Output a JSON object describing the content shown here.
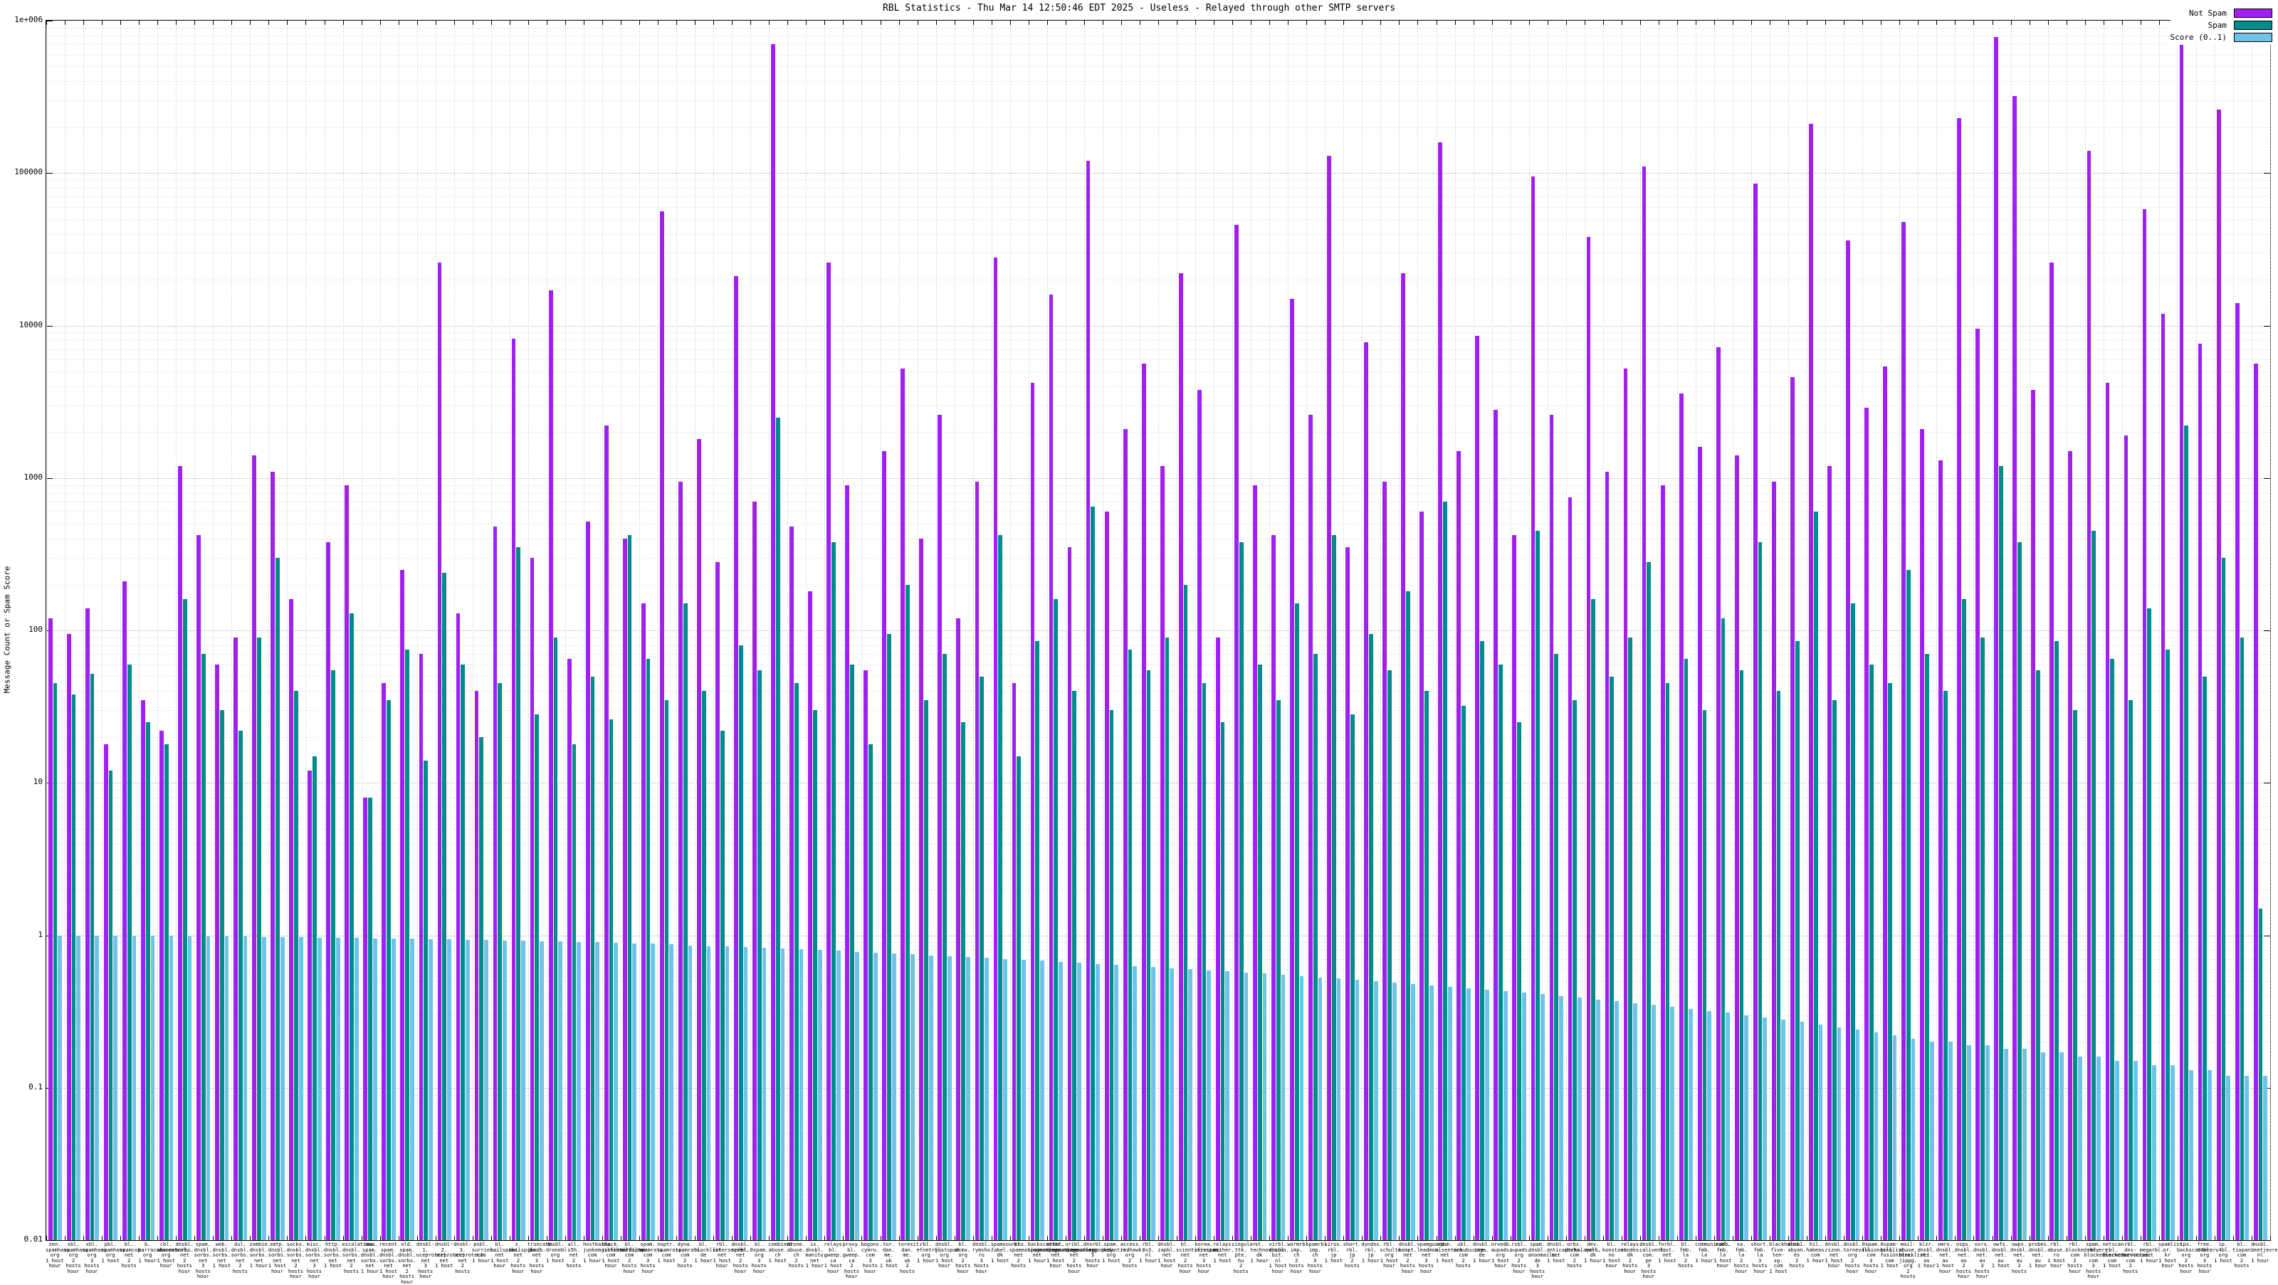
{
  "chart_data": {
    "type": "bar",
    "title": "RBL Statistics - Thu Mar 14 12:50:46 EDT 2025 - Useless - Relayed through other SMTP servers",
    "xlabel": "",
    "ylabel": "Message Count or Spam Score",
    "yscale": "log",
    "ylim": [
      0.01,
      1000000
    ],
    "grid": true,
    "legend_position": "top-right",
    "y_ticks": [
      "1e+006",
      "100000",
      "10000",
      "1000",
      "100",
      "10",
      "1",
      "0.1",
      "0.01"
    ],
    "categories": [
      "zen.spamhaus.org",
      "sbl.spamhaus.org",
      "xbl.spamhaus.org",
      "pbl.spamhaus.org",
      "bl.spamcop.net",
      "b.barracudacentral.org",
      "cbl.abuseat.org",
      "dnsbl.sorbs.net",
      "spam.dnsbl.sorbs.net",
      "web.dnsbl.sorbs.net",
      "dul.dnsbl.sorbs.net",
      "zombie.dnsbl.sorbs.net",
      "smtp.dnsbl.sorbs.net",
      "socks.dnsbl.sorbs.net",
      "misc.dnsbl.sorbs.net",
      "http.dnsbl.sorbs.net",
      "escalations.dnsbl.sorbs.net",
      "new.spam.dnsbl.sorbs.net",
      "recent.spam.dnsbl.sorbs.net",
      "old.spam.dnsbl.sorbs.net",
      "dnsbl-1.uceprotect.net",
      "dnsbl-2.uceprotect.net",
      "dnsbl-3.uceprotect.net",
      "psbl.surriel.com",
      "bl.mailspike.net",
      "z.mailspike.net",
      "truncate.gbudb.net",
      "dnsbl.dronebl.org",
      "all.s5h.net",
      "hostkarma.junkemailfilter.com",
      "black.junkemailfilter.com",
      "bl.nordspam.com",
      "spam.spamrats.com",
      "noptr.spamrats.com",
      "dyna.spamrats.com",
      "bl.blocklist.de",
      "rbl.interserver.net",
      "dnsbl.spfbl.net",
      "bl.0spam.org",
      "combined.abuse.ch",
      "drone.abuse.ch",
      "ix.dnsbl.manitu.net",
      "relays.bl.gweep.ca",
      "proxy.bl.gweep.ca",
      "bogons.cymru.com",
      "tor.dan.me.uk",
      "torexit.dan.me.uk",
      "rbl.efnetrbl.org",
      "dnsbl.justspam.org",
      "bl.drmx.org",
      "dnsbl.rymsho.ru",
      "spamsources.fabel.dk",
      "bl.spameatingmonkey.net",
      "backscatter.spameatingmonkey.net",
      "netbl.spameatingmonkey.net",
      "uribl.spameatingmonkey.net",
      "dnsrbl.org",
      "spam.pedantic.org",
      "access.redhawk.org",
      "rbl.0x3.nl",
      "dnsbl.zapbl.net",
      "bl.scientificspam.net",
      "korea.services.net",
      "relays.nether.net",
      "singular.ttk.pte.hu",
      "st.technovision.dk",
      "virbl.dnsbl.bit.nl",
      "wormrbl.imp.ch",
      "spamrbl.imp.ch",
      "virus.rbl.jp",
      "short.rbl.jp",
      "dyndns.rbl.jp",
      "rbl.schulte.org",
      "dnsbl.kempt.net",
      "spamguard.leadmon.net",
      "spam.olsentech.net",
      "ubl.unsubscore.com",
      "dnsbl.inps.de",
      "orvedb.aupads.org",
      "rsbl.aupads.org",
      "spam.dnsbl.anonmails.de",
      "dnsbl.anticaptcha.net",
      "orbs.dorkslayers.com",
      "dev.null.dk",
      "bl.konstant.no",
      "relays.sandes.dk",
      "dnsbl.calivent.com.pe",
      "fnrbl.fast.net",
      "bl.fmb.la",
      "communicado.fmb.la",
      "nsbl.fmb.la",
      "sa.fmb.la",
      "short.fmb.la",
      "blackholes.five-ten-sg.com",
      "dnsbl.abyan.es",
      "hil.habeas.com",
      "dnsbl.rizon.net",
      "dnsbl.tornevall.org",
      "0spam.fusionzero.com",
      "0spam-killlist.fusionzero.com",
      "mail-abuse.blacklist.jippg.org",
      "klzr.dnsbl.net.au",
      "omrs.dnsbl.net.au",
      "osps.dnsbl.net.au",
      "osrs.dnsbl.net.au",
      "owfs.dnsbl.net.au",
      "owps.dnsbl.net.au",
      "probes.dnsbl.net.au",
      "rbl.abuse.ro",
      "rbl.blockedservers.com",
      "spam.rbl.blockedservers.com",
      "netscan.rbl.blockedservers.com",
      "rbl.dns-servicios.com",
      "rbl.megarbl.net",
      "spamlist.or.kr",
      "ips.backscatterer.org",
      "free.v4bl.org",
      "ip.v4bl.org",
      "bl.tiopan.com",
      "dnsbl.beetjevreemd.nl"
    ],
    "category_notes": [
      "1 host hour",
      "2 hosts hour",
      "3 hosts hour",
      "1 host",
      "2 hosts",
      "1 hour",
      "1 host hour",
      "2 hosts hour",
      "3 hosts hour",
      "1 host",
      "2 hosts",
      "1 hour",
      "1 host hour",
      "2 hosts hour",
      "3 hosts hour",
      "1 host",
      "2 hosts",
      "1 hour",
      "1 host hour",
      "2 hosts hour",
      "3 hosts hour",
      "1 host",
      "2 hosts",
      "1 hour",
      "1 host hour",
      "2 hosts hour",
      "3 hosts hour",
      "1 host",
      "2 hosts",
      "1 hour",
      "1 host hour",
      "2 hosts hour",
      "3 hosts hour",
      "1 host",
      "2 hosts",
      "1 hour",
      "1 host hour",
      "2 hosts hour",
      "3 hosts hour",
      "1 host",
      "2 hosts",
      "1 hour",
      "1 host hour",
      "2 hosts hour",
      "3 hosts hour",
      "1 host",
      "2 hosts",
      "1 hour",
      "1 host hour",
      "2 hosts hour",
      "3 hosts hour",
      "1 host",
      "2 hosts",
      "1 hour",
      "1 host hour",
      "2 hosts hour",
      "3 hosts hour",
      "1 host",
      "2 hosts",
      "1 hour",
      "1 host hour",
      "2 hosts hour",
      "3 hosts hour",
      "1 host",
      "2 hosts",
      "1 hour",
      "1 host hour",
      "2 hosts hour",
      "3 hosts hour",
      "1 host",
      "2 hosts",
      "1 hour",
      "1 host hour",
      "2 hosts hour",
      "3 hosts hour",
      "1 host",
      "2 hosts",
      "1 hour",
      "1 host hour",
      "2 hosts hour",
      "3 hosts hour",
      "1 host",
      "2 hosts",
      "1 hour",
      "1 host hour",
      "2 hosts hour",
      "3 hosts hour",
      "1 host",
      "2 hosts",
      "1 hour",
      "1 host hour",
      "2 hosts hour",
      "3 hosts hour",
      "1 host",
      "2 hosts",
      "1 hour",
      "1 host hour",
      "2 hosts hour",
      "3 hosts hour",
      "1 host",
      "2 hosts",
      "1 hour",
      "1 host hour",
      "2 hosts hour",
      "3 hosts hour",
      "1 host",
      "2 hosts",
      "1 hour",
      "1 host hour",
      "2 hosts hour",
      "3 hosts hour",
      "1 host",
      "2 hosts",
      "1 hour",
      "1 host hour",
      "2 hosts hour",
      "3 hosts hour",
      "1 host",
      "2 hosts",
      "1 hour"
    ],
    "series": [
      {
        "name": "Not Spam",
        "color": "#a020f0",
        "values": [
          120,
          95,
          140,
          18,
          210,
          35,
          22,
          1200,
          420,
          60,
          90,
          1400,
          1100,
          160,
          12,
          380,
          900,
          8,
          45,
          250,
          70,
          26000,
          130,
          40,
          480,
          8200,
          300,
          17000,
          65,
          520,
          2200,
          400,
          150,
          56000,
          950,
          1800,
          280,
          21000,
          700,
          700000,
          480,
          180,
          26000,
          900,
          55,
          1500,
          5200,
          400,
          2600,
          120,
          950,
          28000,
          45,
          4200,
          16000,
          350,
          120000,
          600,
          2100,
          5600,
          1200,
          22000,
          3800,
          90,
          46000,
          900,
          420,
          15000,
          2600,
          130000,
          350,
          7800,
          950,
          22000,
          600,
          160000,
          1500,
          8600,
          2800,
          420,
          95000,
          2600,
          750,
          38000,
          1100,
          5200,
          110000,
          900,
          3600,
          1600,
          7200,
          1400,
          85000,
          950,
          4600,
          210000,
          1200,
          36000,
          2900,
          5400,
          48000,
          2100,
          1300,
          230000,
          9500,
          780000,
          320000,
          3800,
          26000,
          1500,
          140000,
          4200,
          1900,
          58000,
          12000,
          820000,
          7600,
          260000,
          14000,
          5600
        ]
      },
      {
        "name": "Spam",
        "color": "#008b8b",
        "values": [
          45,
          38,
          52,
          12,
          60,
          25,
          18,
          160,
          70,
          30,
          22,
          90,
          300,
          40,
          15,
          55,
          130,
          8,
          35,
          75,
          14,
          240,
          60,
          20,
          45,
          350,
          28,
          90,
          18,
          50,
          26,
          420,
          65,
          35,
          150,
          40,
          22,
          80,
          55,
          2500,
          45,
          30,
          380,
          60,
          18,
          95,
          200,
          35,
          70,
          25,
          50,
          420,
          15,
          85,
          160,
          40,
          650,
          30,
          75,
          55,
          90,
          200,
          45,
          25,
          380,
          60,
          35,
          150,
          70,
          420,
          28,
          95,
          55,
          180,
          40,
          700,
          32,
          85,
          60,
          25,
          450,
          70,
          35,
          160,
          50,
          90,
          280,
          45,
          65,
          30,
          120,
          55,
          380,
          40,
          85,
          600,
          35,
          150,
          60,
          45,
          250,
          70,
          40,
          160,
          90,
          1200,
          380,
          55,
          85,
          30,
          450,
          65,
          35,
          140,
          75,
          2200,
          50,
          300,
          90,
          1.5
        ]
      },
      {
        "name": "Score (0..1)",
        "color": "#6fc3ea",
        "values": [
          1.0,
          1.0,
          1.0,
          0.99,
          0.99,
          0.99,
          0.99,
          0.98,
          0.98,
          0.98,
          0.98,
          0.97,
          0.97,
          0.97,
          0.96,
          0.96,
          0.96,
          0.95,
          0.95,
          0.95,
          0.94,
          0.94,
          0.93,
          0.93,
          0.92,
          0.92,
          0.91,
          0.91,
          0.9,
          0.9,
          0.89,
          0.88,
          0.88,
          0.87,
          0.86,
          0.85,
          0.85,
          0.84,
          0.83,
          0.82,
          0.81,
          0.8,
          0.79,
          0.78,
          0.77,
          0.76,
          0.75,
          0.74,
          0.73,
          0.72,
          0.71,
          0.7,
          0.69,
          0.68,
          0.67,
          0.66,
          0.65,
          0.64,
          0.63,
          0.62,
          0.61,
          0.6,
          0.59,
          0.58,
          0.57,
          0.56,
          0.55,
          0.54,
          0.53,
          0.52,
          0.51,
          0.5,
          0.49,
          0.48,
          0.47,
          0.46,
          0.45,
          0.44,
          0.43,
          0.42,
          0.41,
          0.4,
          0.39,
          0.38,
          0.37,
          0.36,
          0.35,
          0.34,
          0.33,
          0.32,
          0.31,
          0.3,
          0.29,
          0.28,
          0.27,
          0.26,
          0.25,
          0.24,
          0.23,
          0.22,
          0.21,
          0.2,
          0.2,
          0.19,
          0.19,
          0.18,
          0.18,
          0.17,
          0.17,
          0.16,
          0.16,
          0.15,
          0.15,
          0.14,
          0.14,
          0.13,
          0.13,
          0.12,
          0.12,
          0.12
        ]
      }
    ]
  }
}
